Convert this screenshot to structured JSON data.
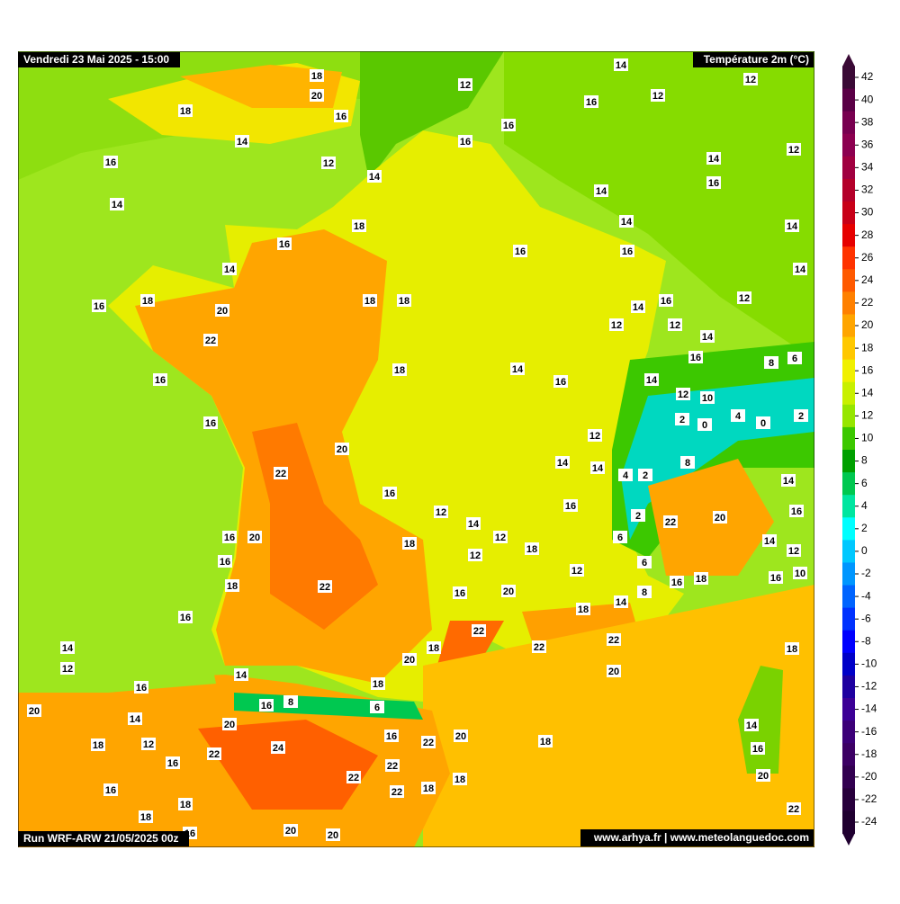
{
  "header": {
    "date": "Vendredi 23 Mai 2025 - 15:00",
    "variable": "Température 2m (°C)",
    "run": "Run WRF-ARW 21/05/2025 00z",
    "credits": "www.arhya.fr | www.meteolanguedoc.com"
  },
  "colorbar": {
    "levels": [
      42,
      40,
      38,
      36,
      34,
      32,
      30,
      28,
      26,
      24,
      22,
      20,
      18,
      16,
      14,
      12,
      10,
      8,
      6,
      4,
      2,
      0,
      -2,
      -4,
      -6,
      -8,
      -10,
      -12,
      -14,
      -16,
      -18,
      -20,
      -22,
      -24
    ],
    "colors": [
      "#3a0a36",
      "#5a0046",
      "#780050",
      "#8c0050",
      "#a00040",
      "#b4002a",
      "#c80018",
      "#e60000",
      "#ff3300",
      "#ff5a00",
      "#ff8000",
      "#ffa500",
      "#ffc800",
      "#f0f000",
      "#c8f000",
      "#96e600",
      "#3cc800",
      "#00a000",
      "#00c850",
      "#00e6a0",
      "#00ffff",
      "#00c8ff",
      "#0096ff",
      "#0064ff",
      "#0032ff",
      "#0000ff",
      "#0000c8",
      "#1e00a0",
      "#3c0096",
      "#3c0078",
      "#3c0064",
      "#320050",
      "#28003c",
      "#200030"
    ]
  },
  "map_labels": [
    18,
    20,
    18,
    16,
    14,
    16,
    12,
    14,
    14,
    12,
    12,
    12,
    16,
    16,
    16,
    12,
    14,
    14,
    16,
    14,
    18,
    14,
    14,
    16,
    16,
    16,
    14,
    14,
    18,
    16,
    18,
    18,
    16,
    12,
    14,
    20,
    12,
    12,
    22,
    14,
    16,
    8,
    6,
    16,
    18,
    14,
    16,
    14,
    12,
    10,
    2,
    0,
    4,
    0,
    2,
    16,
    20,
    12,
    8,
    22,
    14,
    14,
    4,
    2,
    14,
    16,
    16,
    12,
    14,
    2,
    22,
    20,
    16,
    16,
    20,
    18,
    12,
    6,
    14,
    12,
    16,
    12,
    18,
    6,
    12,
    16,
    10,
    18,
    22,
    16,
    18,
    16,
    20,
    8,
    14,
    18,
    16,
    22,
    22,
    14,
    18,
    22,
    18,
    12,
    20,
    20,
    14,
    16,
    18,
    16,
    8,
    6,
    20,
    14,
    20,
    16,
    20,
    18,
    12,
    22,
    18,
    14,
    16,
    24,
    22,
    16,
    22,
    22,
    20,
    18,
    16,
    22,
    18,
    18,
    18,
    22,
    16,
    20,
    20
  ]
}
